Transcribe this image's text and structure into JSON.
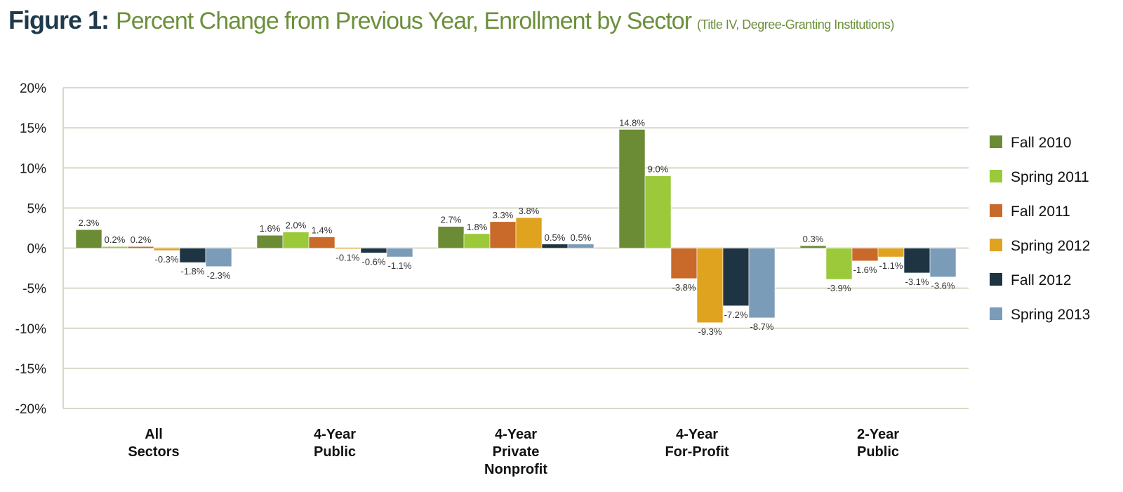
{
  "figure_label": "Figure 1:",
  "title": "Percent Change from Previous Year, Enrollment by Sector",
  "subtitle": "(Title IV, Degree-Granting Institutions)",
  "chart_data": {
    "type": "bar",
    "categories": [
      [
        "All",
        "Sectors"
      ],
      [
        "4-Year",
        "Public"
      ],
      [
        "4-Year",
        "Private",
        "Nonprofit"
      ],
      [
        "4-Year",
        "For-Profit"
      ],
      [
        "2-Year",
        "Public"
      ]
    ],
    "ylim": [
      -20,
      20
    ],
    "yticks": [
      20,
      15,
      10,
      5,
      0,
      -5,
      -10,
      -15,
      -20
    ],
    "ytick_labels": [
      "20%",
      "15%",
      "10%",
      "5%",
      "0%",
      "-5%",
      "-10%",
      "-15%",
      "-20%"
    ],
    "grid": true,
    "legend_position": "right",
    "series": [
      {
        "name": "Fall 2010",
        "color": "#6b8b35",
        "values": [
          2.3,
          1.6,
          2.7,
          14.8,
          0.3
        ],
        "labels": [
          "2.3%",
          "1.6%",
          "2.7%",
          "14.8%",
          "0.3%"
        ]
      },
      {
        "name": "Spring 2011",
        "color": "#9bc93a",
        "values": [
          0.2,
          2.0,
          1.8,
          9.0,
          -3.9
        ],
        "labels": [
          "0.2%",
          "2.0%",
          "1.8%",
          "9.0%",
          "-3.9%"
        ]
      },
      {
        "name": "Fall 2011",
        "color": "#c9692a",
        "values": [
          0.2,
          1.4,
          3.3,
          -3.8,
          -1.6
        ],
        "labels": [
          "0.2%",
          "1.4%",
          "3.3%",
          "-3.8%",
          "-1.6%"
        ]
      },
      {
        "name": "Spring 2012",
        "color": "#dfa31f",
        "values": [
          -0.3,
          -0.1,
          3.8,
          -9.3,
          -1.1
        ],
        "labels": [
          "-0.3%",
          "-0.1%",
          "3.8%",
          "-9.3%",
          "-1.1%"
        ]
      },
      {
        "name": "Fall 2012",
        "color": "#1f3443",
        "values": [
          -1.8,
          -0.6,
          0.5,
          -7.2,
          -3.1
        ],
        "labels": [
          "-1.8%",
          "-0.6%",
          "0.5%",
          "-7.2%",
          "-3.1%"
        ]
      },
      {
        "name": "Spring 2013",
        "color": "#7b9cb8",
        "values": [
          -2.3,
          -1.1,
          0.5,
          -8.7,
          -3.6
        ],
        "labels": [
          "-2.3%",
          "-1.1%",
          "0.5%",
          "-8.7%",
          "-3.6%"
        ]
      }
    ]
  }
}
